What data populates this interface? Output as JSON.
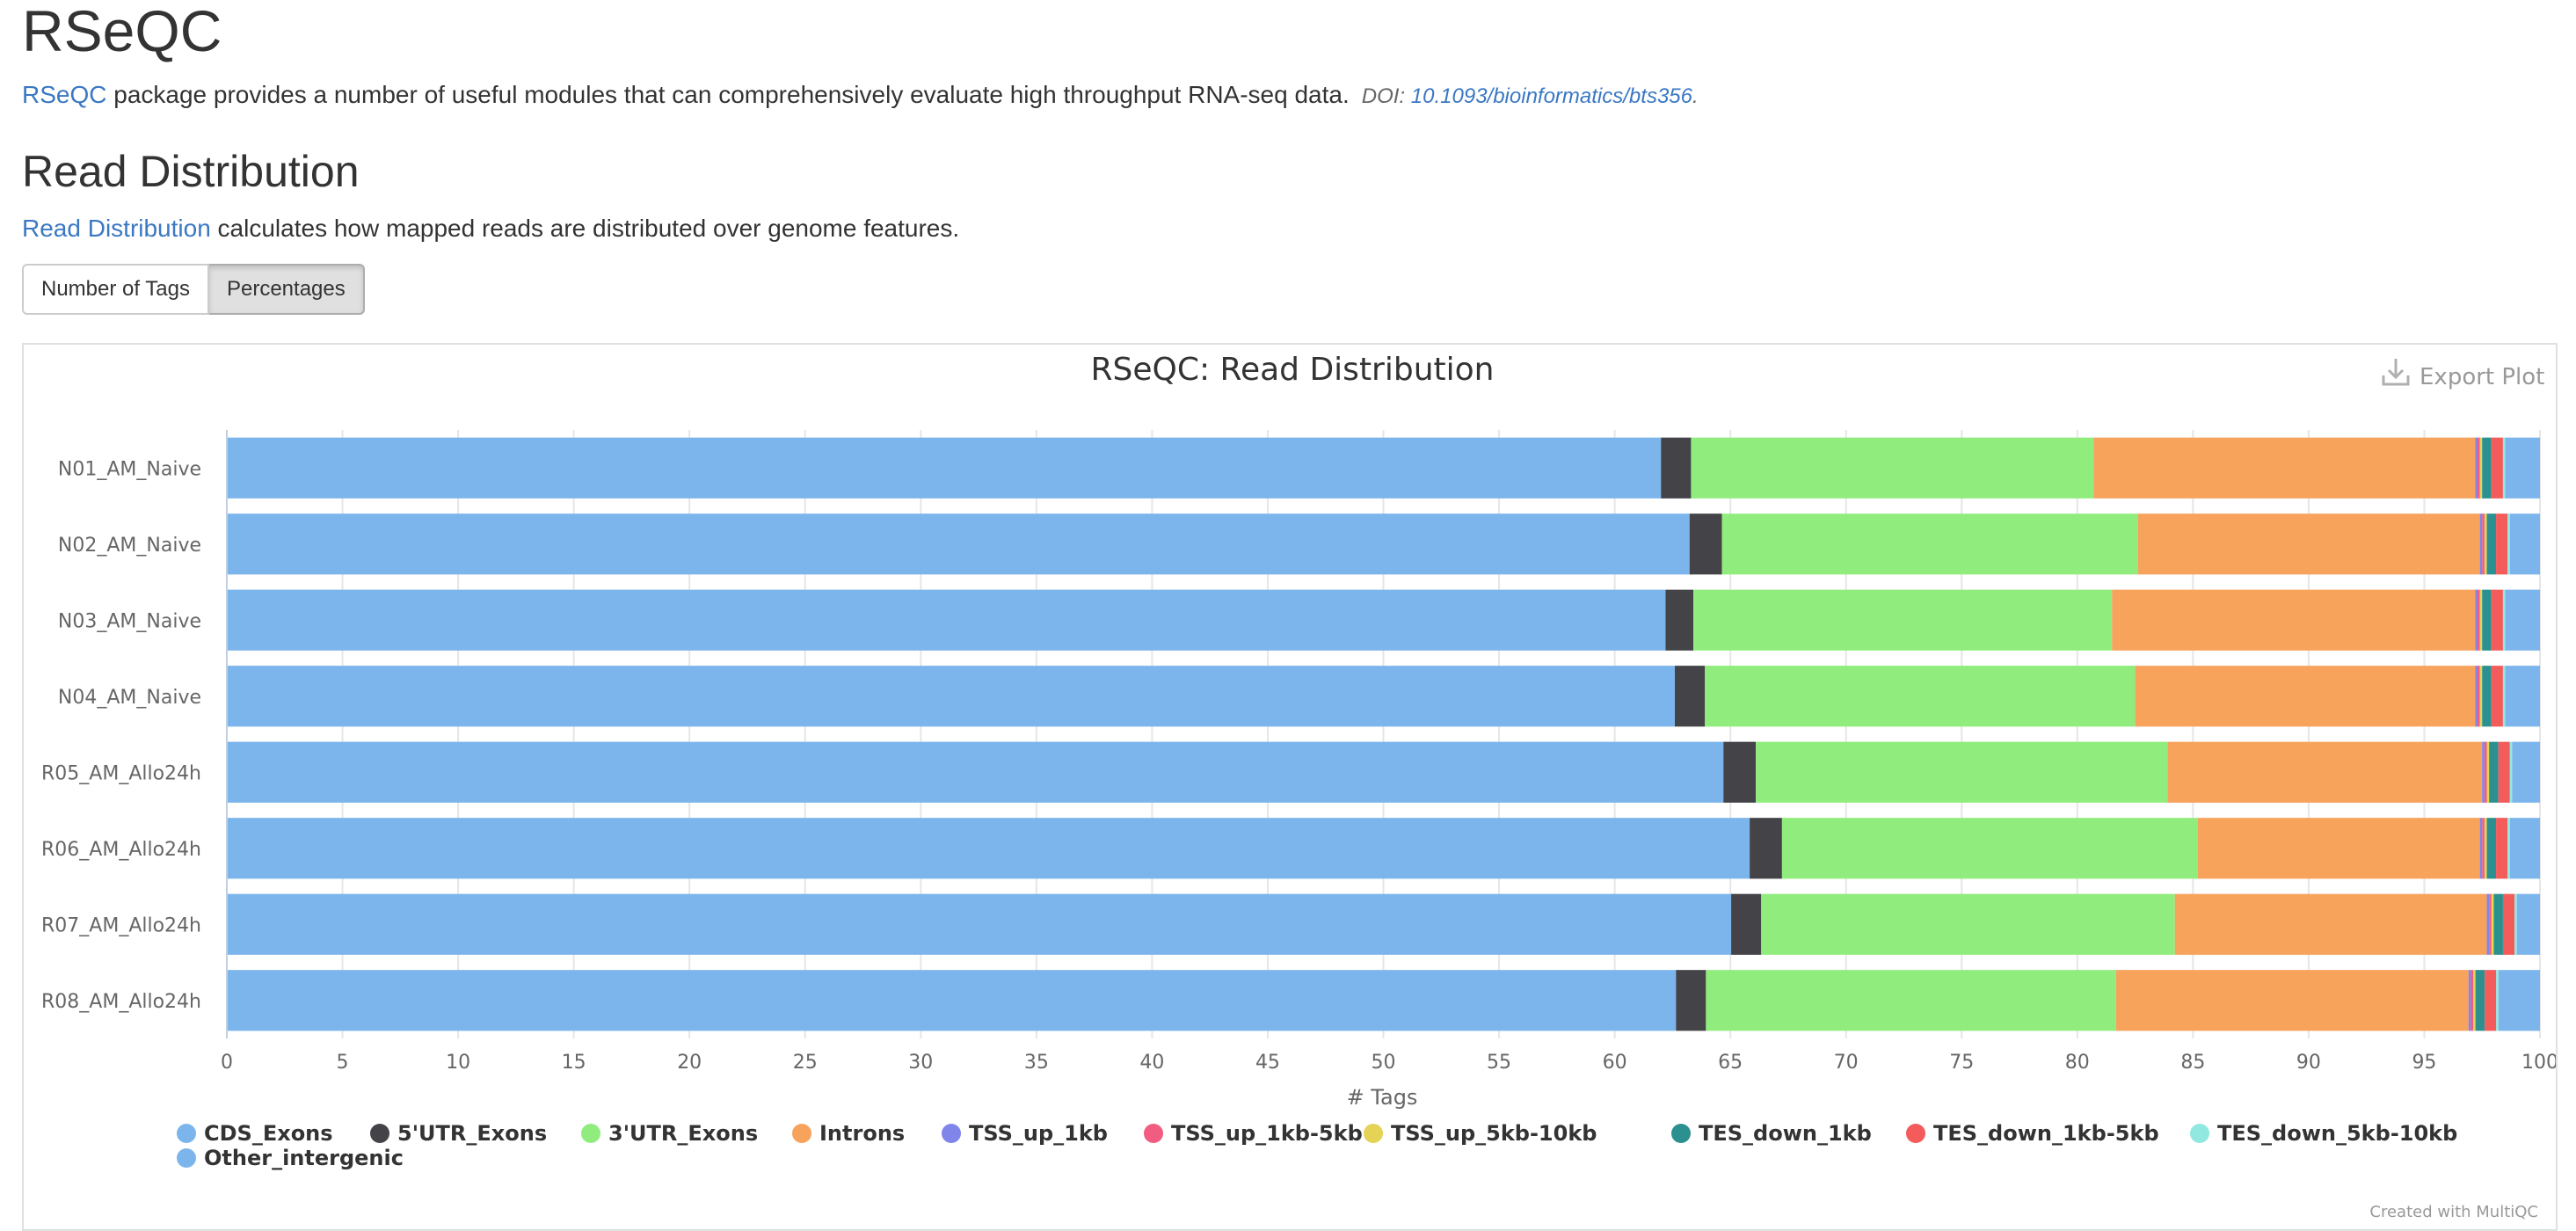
{
  "page": {
    "section_title": "RSeQC",
    "intro_link": "RSeQC",
    "intro_text": " package provides a number of useful modules that can comprehensively evaluate high throughput RNA-seq data.",
    "doi_label": "DOI: ",
    "doi_link": "10.1093/bioinformatics/bts356",
    "doi_suffix": ".",
    "module_title": "Read Distribution",
    "module_link": "Read Distribution",
    "module_text": " calculates how mapped reads are distributed over genome features.",
    "buttons": {
      "tags": "Number of Tags",
      "percentages": "Percentages"
    },
    "export_label": "Export Plot",
    "credit": "Created with MultiQC"
  },
  "chart_data": {
    "type": "bar",
    "orientation": "horizontal",
    "stacked": true,
    "title": "RSeQC: Read Distribution",
    "xlabel": "# Tags",
    "ylabel": "",
    "xlim": [
      0,
      100
    ],
    "xticks": [
      0,
      5,
      10,
      15,
      20,
      25,
      30,
      35,
      40,
      45,
      50,
      55,
      60,
      65,
      70,
      75,
      80,
      85,
      90,
      95,
      100
    ],
    "grid": true,
    "legend_position": "bottom",
    "categories": [
      "N01_AM_Naive",
      "N02_AM_Naive",
      "N03_AM_Naive",
      "N04_AM_Naive",
      "R05_AM_Allo24h",
      "R06_AM_Allo24h",
      "R07_AM_Allo24h",
      "R08_AM_Allo24h"
    ],
    "series": [
      {
        "name": "CDS_Exons",
        "color": "#7cb5ec",
        "values": [
          62.0,
          63.3,
          62.2,
          62.6,
          64.7,
          65.9,
          65.1,
          62.9
        ]
      },
      {
        "name": "5'UTR_Exons",
        "color": "#434348",
        "values": [
          1.3,
          1.4,
          1.2,
          1.3,
          1.4,
          1.4,
          1.3,
          1.3
        ]
      },
      {
        "name": "3'UTR_Exons",
        "color": "#90ed7d",
        "values": [
          17.4,
          18.0,
          18.1,
          18.6,
          17.8,
          18.0,
          17.9,
          17.8
        ]
      },
      {
        "name": "Introns",
        "color": "#f7a35c",
        "values": [
          16.5,
          14.8,
          15.7,
          14.7,
          13.6,
          12.2,
          13.5,
          15.3
        ]
      },
      {
        "name": "TSS_up_1kb",
        "color": "#8085e9",
        "values": [
          0.1,
          0.1,
          0.1,
          0.1,
          0.1,
          0.1,
          0.1,
          0.1
        ]
      },
      {
        "name": "TSS_up_1kb-5kb",
        "color": "#f15c80",
        "values": [
          0.1,
          0.1,
          0.1,
          0.1,
          0.1,
          0.1,
          0.1,
          0.1
        ]
      },
      {
        "name": "TSS_up_5kb-10kb",
        "color": "#e4d354",
        "values": [
          0.1,
          0.1,
          0.1,
          0.1,
          0.1,
          0.1,
          0.1,
          0.1
        ]
      },
      {
        "name": "TES_down_1kb",
        "color": "#2b908f",
        "values": [
          0.4,
          0.4,
          0.4,
          0.4,
          0.4,
          0.4,
          0.4,
          0.4
        ]
      },
      {
        "name": "TES_down_1kb-5kb",
        "color": "#f45b5b",
        "values": [
          0.5,
          0.5,
          0.5,
          0.5,
          0.5,
          0.5,
          0.5,
          0.5
        ]
      },
      {
        "name": "TES_down_5kb-10kb",
        "color": "#91e8e1",
        "values": [
          0.1,
          0.1,
          0.1,
          0.1,
          0.1,
          0.1,
          0.1,
          0.1
        ]
      },
      {
        "name": "Other_intergenic",
        "color": "#7cb5ec",
        "values": [
          1.5,
          1.3,
          1.5,
          1.5,
          1.2,
          1.3,
          1.0,
          1.8
        ]
      }
    ]
  }
}
